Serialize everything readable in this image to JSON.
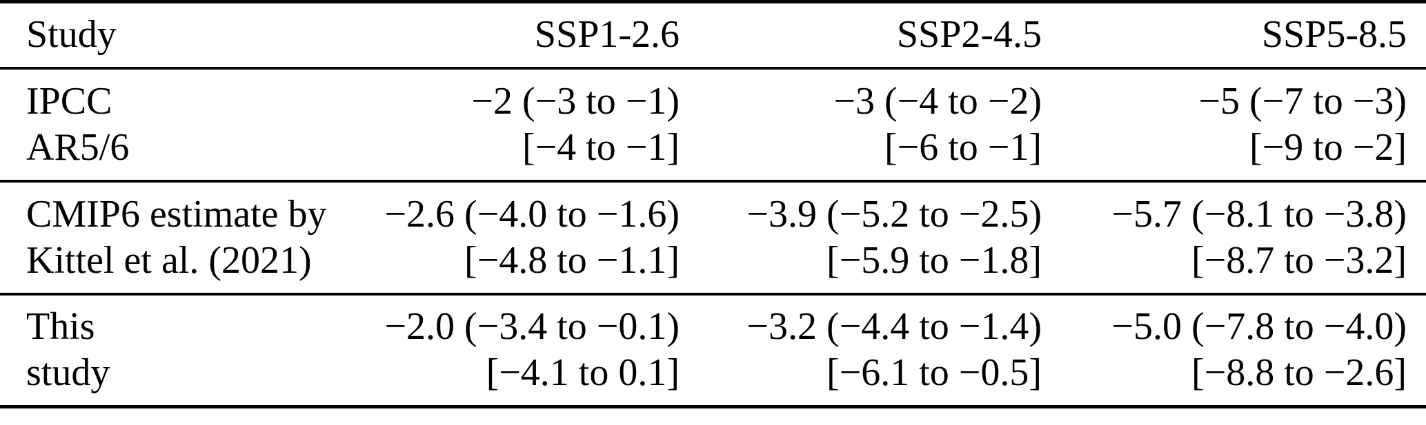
{
  "colors": {
    "text": "#000000",
    "background": "#ffffff",
    "rule": "#000000"
  },
  "table": {
    "header": {
      "study": "Study",
      "ssp126": "SSP1-2.6",
      "ssp245": "SSP2-4.5",
      "ssp585": "SSP5-8.5"
    },
    "rows": [
      {
        "study": [
          "IPCC",
          "AR5/6"
        ],
        "ssp126": [
          "−2 (−3 to −1)",
          "[−4 to −1]"
        ],
        "ssp245": [
          "−3 (−4 to −2)",
          "[−6 to −1]"
        ],
        "ssp585": [
          "−5 (−7 to −3)",
          "[−9 to −2]"
        ]
      },
      {
        "study": [
          "CMIP6 estimate by",
          "Kittel et al. (2021)"
        ],
        "ssp126": [
          "−2.6 (−4.0 to −1.6)",
          "[−4.8 to −1.1]"
        ],
        "ssp245": [
          "−3.9 (−5.2 to −2.5)",
          "[−5.9 to −1.8]"
        ],
        "ssp585": [
          "−5.7 (−8.1 to −3.8)",
          "[−8.7 to −3.2]"
        ]
      },
      {
        "study": [
          "This",
          "study"
        ],
        "ssp126": [
          "−2.0 (−3.4 to −0.1)",
          "[−4.1 to 0.1]"
        ],
        "ssp245": [
          "−3.2 (−4.4 to −1.4)",
          "[−6.1 to −0.5]"
        ],
        "ssp585": [
          "−5.0 (−7.8 to −4.0)",
          "[−8.8 to −2.6]"
        ]
      }
    ]
  }
}
